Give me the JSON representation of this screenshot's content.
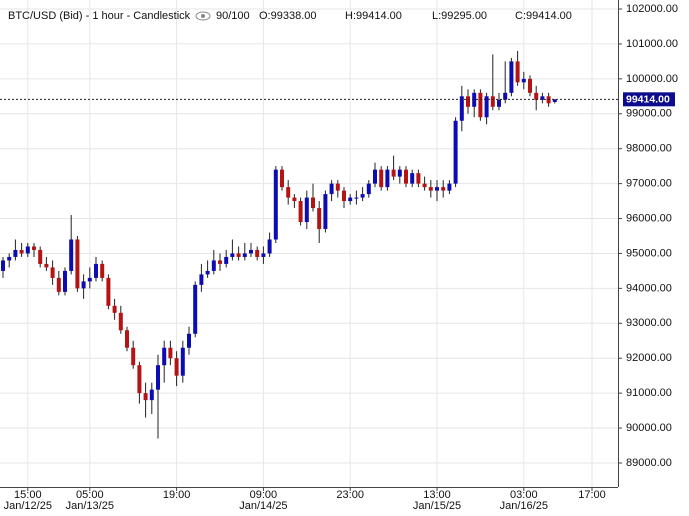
{
  "header": {
    "title": "BTC/USD (Bid) - 1 hour - Candlestick",
    "count": "90/100",
    "ohlc": [
      "O:99338.00",
      "H:99414.00",
      "L:99295.00",
      "C:99414.00"
    ]
  },
  "chart_data": {
    "type": "candlestick",
    "categories": [
      null,
      null,
      null,
      null,
      "15:00",
      null,
      null,
      null,
      null,
      null,
      null,
      null,
      null,
      null,
      "05:00",
      null,
      null,
      null,
      null,
      null,
      null,
      null,
      null,
      null,
      null,
      null,
      null,
      null,
      "19:00",
      null,
      null,
      null,
      null,
      null,
      null,
      null,
      null,
      null,
      null,
      null,
      null,
      null,
      "09:00",
      null,
      null,
      null,
      null,
      null,
      null,
      null,
      null,
      null,
      null,
      null,
      null,
      null,
      "23:00",
      null,
      null,
      null,
      null,
      null,
      null,
      null,
      null,
      null,
      null,
      null,
      null,
      null,
      "13:00",
      null,
      null,
      null,
      null,
      null,
      null,
      null,
      null,
      null,
      null,
      null,
      null,
      null,
      "03:00",
      null,
      null,
      null,
      null,
      null,
      null,
      null,
      null,
      null,
      null,
      "17:00"
    ],
    "dates": [
      null,
      null,
      null,
      null,
      "Jan/12/25",
      null,
      null,
      null,
      null,
      null,
      null,
      null,
      null,
      null,
      "Jan/13/25",
      null,
      null,
      null,
      null,
      null,
      null,
      null,
      null,
      null,
      null,
      null,
      null,
      null,
      null,
      null,
      null,
      null,
      null,
      null,
      null,
      null,
      null,
      null,
      null,
      null,
      null,
      null,
      "Jan/14/25",
      null,
      null,
      null,
      null,
      null,
      null,
      null,
      null,
      null,
      null,
      null,
      null,
      null,
      null,
      null,
      null,
      null,
      null,
      null,
      null,
      null,
      null,
      null,
      null,
      null,
      null,
      null,
      "Jan/15/25",
      null,
      null,
      null,
      null,
      null,
      null,
      null,
      null,
      null,
      null,
      null,
      null,
      null,
      "Jan/16/25",
      null,
      null,
      null,
      null,
      null,
      null,
      null,
      null,
      null,
      null,
      null
    ],
    "open": [
      94500,
      94800,
      94900,
      95100,
      95000,
      95200,
      95100,
      94700,
      94600,
      94300,
      93900,
      94500,
      95400,
      94000,
      94200,
      94300,
      94700,
      94300,
      93500,
      93300,
      92800,
      92300,
      91800,
      91000,
      90800,
      91100,
      91800,
      92300,
      92000,
      91500,
      92300,
      92700,
      94100,
      94400,
      94500,
      94800,
      94700,
      94900,
      95000,
      94900,
      95000,
      95100,
      94900,
      95000,
      95400,
      97400,
      96900,
      96600,
      96500,
      95900,
      96600,
      96300,
      95700,
      96700,
      97000,
      96800,
      96500,
      96600,
      96600,
      96700,
      97000,
      97400,
      96900,
      97400,
      97200,
      97400,
      97000,
      97300,
      97000,
      96900,
      96800,
      96900,
      96800,
      97000,
      98800,
      99500,
      99200,
      99600,
      98900,
      99500,
      99200,
      99400,
      99600,
      100500,
      99900,
      100000,
      99600,
      99400,
      99500,
      99338,
      null,
      null,
      null,
      null,
      null,
      null
    ],
    "high": [
      94900,
      95000,
      95400,
      95300,
      95300,
      95300,
      95200,
      94900,
      94800,
      94500,
      94600,
      96100,
      95500,
      94400,
      94600,
      94900,
      94800,
      94400,
      93700,
      93500,
      92900,
      92500,
      91900,
      91300,
      91300,
      92100,
      92500,
      92500,
      92200,
      92500,
      92900,
      94200,
      94700,
      94800,
      95100,
      95000,
      95100,
      95400,
      95200,
      95300,
      95300,
      95200,
      95200,
      95600,
      97500,
      97500,
      97100,
      96700,
      96600,
      96800,
      97000,
      96500,
      96800,
      97100,
      97100,
      96900,
      96700,
      96800,
      96900,
      97100,
      97600,
      97500,
      97500,
      97800,
      97500,
      97500,
      97400,
      97400,
      97200,
      97100,
      97100,
      97100,
      97100,
      98900,
      99800,
      99700,
      99700,
      99700,
      99600,
      100700,
      99600,
      100500,
      100600,
      100800,
      100200,
      100100,
      99800,
      99600,
      99600,
      99414,
      null,
      null,
      null,
      null,
      null,
      null
    ],
    "low": [
      94300,
      94600,
      94800,
      94900,
      94900,
      94900,
      94600,
      94500,
      94100,
      93800,
      93800,
      94400,
      93900,
      93700,
      94000,
      94200,
      94200,
      93400,
      93100,
      92700,
      92200,
      91700,
      90700,
      90300,
      90400,
      89700,
      91300,
      91800,
      91200,
      91300,
      92100,
      92600,
      93900,
      94300,
      94400,
      94500,
      94600,
      94800,
      94800,
      94800,
      94900,
      94800,
      94700,
      94900,
      95300,
      96800,
      96400,
      96300,
      95800,
      95700,
      96200,
      95300,
      95600,
      96500,
      96600,
      96300,
      96400,
      96400,
      96500,
      96600,
      96900,
      96800,
      96800,
      97100,
      97000,
      96900,
      96900,
      96900,
      96800,
      96600,
      96500,
      96600,
      96700,
      96900,
      98500,
      99000,
      98900,
      98800,
      98700,
      99100,
      99100,
      99300,
      99500,
      99800,
      99700,
      99500,
      99100,
      99300,
      99200,
      99295,
      null,
      null,
      null,
      null,
      null,
      null
    ],
    "close": [
      94800,
      94900,
      95100,
      95000,
      95200,
      95100,
      94700,
      94600,
      94300,
      93900,
      94500,
      95400,
      94000,
      94200,
      94300,
      94700,
      94300,
      93500,
      93300,
      92800,
      92300,
      91800,
      91000,
      90800,
      91100,
      91800,
      92300,
      92000,
      91500,
      92300,
      92700,
      94100,
      94400,
      94500,
      94800,
      94700,
      94900,
      95000,
      94900,
      95000,
      95100,
      94900,
      95000,
      95400,
      97400,
      96900,
      96600,
      96500,
      95900,
      96600,
      96300,
      95700,
      96700,
      97000,
      96800,
      96500,
      96600,
      96600,
      96700,
      97000,
      97400,
      96900,
      97400,
      97200,
      97400,
      97000,
      97300,
      97000,
      96900,
      96800,
      96900,
      96800,
      97000,
      98800,
      99500,
      99200,
      99600,
      98900,
      99500,
      99200,
      99400,
      99600,
      100500,
      99900,
      100000,
      99600,
      99400,
      99500,
      99300,
      99414,
      null,
      null,
      null,
      null,
      null,
      null
    ],
    "up_color": "#0c0cb4",
    "down_color": "#b41414",
    "ylim": [
      88312,
      102258
    ],
    "yticks": [
      {
        "value": 89000,
        "label": "89000.00"
      },
      {
        "value": 90000,
        "label": "90000.00"
      },
      {
        "value": 91000,
        "label": "91000.00"
      },
      {
        "value": 92000,
        "label": "92000.00"
      },
      {
        "value": 93000,
        "label": "93000.00"
      },
      {
        "value": 94000,
        "label": "94000.00"
      },
      {
        "value": 95000,
        "label": "95000.00"
      },
      {
        "value": 96000,
        "label": "96000.00"
      },
      {
        "value": 97000,
        "label": "97000.00"
      },
      {
        "value": 98000,
        "label": "98000.00"
      },
      {
        "value": 99000,
        "label": "99000.00"
      },
      {
        "value": 100000,
        "label": "100000.00"
      },
      {
        "value": 101000,
        "label": "101000.00"
      },
      {
        "value": 102000,
        "label": "102000.00"
      }
    ],
    "last_price": {
      "value": 99414,
      "label": "99414.00"
    },
    "grid": true
  }
}
